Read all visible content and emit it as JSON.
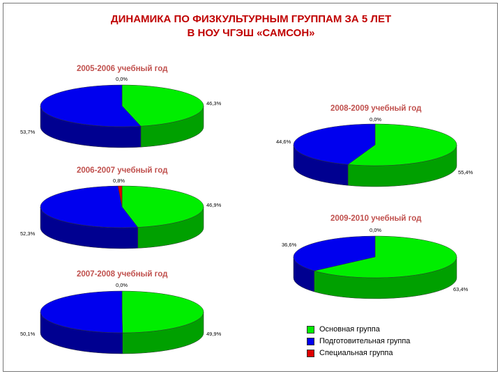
{
  "page": {
    "title_line1": "ДИНАМИКА ПО ФИЗКУЛЬТУРНЫМ ГРУППАМ ЗА 5 ЛЕТ",
    "title_line2": "В НОУ ЧГЭШ «САМСОН»"
  },
  "colors": {
    "title": "#c00000",
    "chart_title": "#c0504d"
  },
  "legend": [
    {
      "label": "Основная группа",
      "color": "#00ee00"
    },
    {
      "label": "Подготовительная группа",
      "color": "#0000ee"
    },
    {
      "label": "Специальная группа",
      "color": "#dd0000"
    }
  ],
  "chart_data": [
    {
      "type": "pie",
      "title": "2005-2006 учебный год",
      "categories": [
        "Основная группа",
        "Подготовительная группа",
        "Специальная группа"
      ],
      "values": [
        46.3,
        53.7,
        0.0
      ],
      "labels": [
        "46,3%",
        "53,7%",
        "0,0%"
      ]
    },
    {
      "type": "pie",
      "title": "2006-2007 учебный год",
      "categories": [
        "Основная группа",
        "Подготовительная группа",
        "Специальная группа"
      ],
      "values": [
        46.9,
        52.3,
        0.8
      ],
      "labels": [
        "46,9%",
        "52,3%",
        "0,8%"
      ]
    },
    {
      "type": "pie",
      "title": "2007-2008 учебный год",
      "categories": [
        "Основная группа",
        "Подготовительная группа",
        "Специальная группа"
      ],
      "values": [
        49.9,
        50.1,
        0.0
      ],
      "labels": [
        "49,9%",
        "50,1%",
        "0,0%"
      ]
    },
    {
      "type": "pie",
      "title": "2008-2009 учебный год",
      "categories": [
        "Основная группа",
        "Подготовительная группа",
        "Специальная группа"
      ],
      "values": [
        55.4,
        44.6,
        0.0
      ],
      "labels": [
        "55,4%",
        "44,6%",
        "0,0%"
      ]
    },
    {
      "type": "pie",
      "title": "2009-2010 учебный год",
      "categories": [
        "Основная группа",
        "Подготовительная группа",
        "Специальная группа"
      ],
      "values": [
        63.4,
        36.6,
        0.0
      ],
      "labels": [
        "63,4%",
        "36,6%",
        "0,0%"
      ]
    }
  ]
}
